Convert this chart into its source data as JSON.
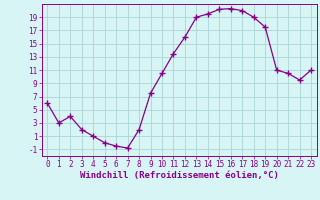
{
  "x": [
    0,
    1,
    2,
    3,
    4,
    5,
    6,
    7,
    8,
    9,
    10,
    11,
    12,
    13,
    14,
    15,
    16,
    17,
    18,
    19,
    20,
    21,
    22,
    23
  ],
  "y": [
    6,
    3,
    4,
    2,
    1,
    0,
    -0.5,
    -0.8,
    2,
    7.5,
    10.5,
    13.5,
    16,
    19,
    19.5,
    20.2,
    20.3,
    20,
    19,
    17.5,
    11,
    10.5,
    9.5,
    11
  ],
  "line_color": "#880088",
  "marker": "+",
  "marker_size": 4,
  "background_color": "#d8f5f5",
  "grid_color": "#aad4d4",
  "xlabel": "Windchill (Refroidissement éolien,°C)",
  "xlim": [
    -0.5,
    23.5
  ],
  "ylim": [
    -2,
    21
  ],
  "yticks": [
    -1,
    1,
    3,
    5,
    7,
    9,
    11,
    13,
    15,
    17,
    19
  ],
  "xticks": [
    0,
    1,
    2,
    3,
    4,
    5,
    6,
    7,
    8,
    9,
    10,
    11,
    12,
    13,
    14,
    15,
    16,
    17,
    18,
    19,
    20,
    21,
    22,
    23
  ],
  "tick_fontsize": 5.5,
  "xlabel_fontsize": 6.5
}
